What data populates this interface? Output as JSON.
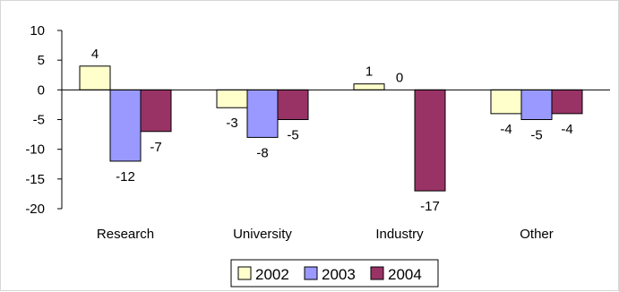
{
  "chart_data": {
    "type": "bar",
    "categories": [
      "Research",
      "University",
      "Industry",
      "Other"
    ],
    "series": [
      {
        "name": "2002",
        "values": [
          4,
          -3,
          1,
          -4
        ],
        "color": "#ffffcc"
      },
      {
        "name": "2003",
        "values": [
          -12,
          -8,
          0,
          -5
        ],
        "color": "#9999ff"
      },
      {
        "name": "2004",
        "values": [
          -7,
          -5,
          -17,
          -4
        ],
        "color": "#993366"
      }
    ],
    "ylim": [
      -20,
      10
    ],
    "yticks": [
      10,
      5,
      0,
      -5,
      -10,
      -15,
      -20
    ],
    "grid": false,
    "legend_position": "bottom"
  }
}
